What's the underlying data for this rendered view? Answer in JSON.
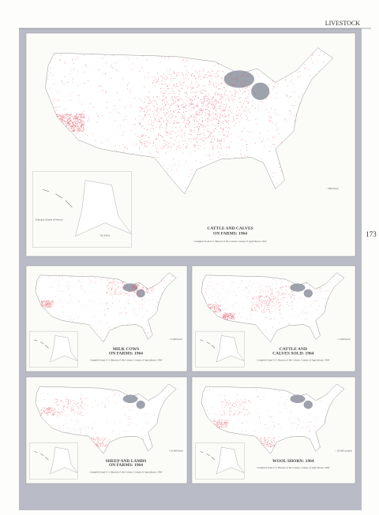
{
  "header": {
    "section": "LIVESTOCK",
    "page_number": "173"
  },
  "maps": [
    {
      "title": [
        "CATTLE AND CALVES",
        "ON FARMS: 1964"
      ],
      "legend": "• 5000 head",
      "source": "Compiled from U.S. Bureau of the Census, Census of Agriculture: 1964",
      "hawaii_label": "Principal islands of Hawaii",
      "alaska_label": "ALASKA"
    },
    {
      "title": [
        "MILK COWS",
        "ON FARMS: 1964"
      ],
      "legend": "• 2,000 head",
      "source": "Compiled from U.S. Bureau of the Census, Census of Agriculture: 1964"
    },
    {
      "title": [
        "CATTLE AND",
        "CALVES SOLD: 1964"
      ],
      "legend": "• 5,000 head",
      "source": "Compiled from U.S. Bureau of the Census, Census of Agriculture: 1964"
    },
    {
      "title": [
        "SHEEP AND LAMBS",
        "ON FARMS: 1964"
      ],
      "legend": "• 10,000 head",
      "source": "Compiled from U.S. Bureau of the Census, Census of Agriculture: 1964"
    },
    {
      "title": [
        "WOOL SHORN: 1964"
      ],
      "legend": "• 50,000 pounds",
      "source": "Compiled from U.S. Bureau of the Census, Census of Agriculture: 1964"
    }
  ]
}
